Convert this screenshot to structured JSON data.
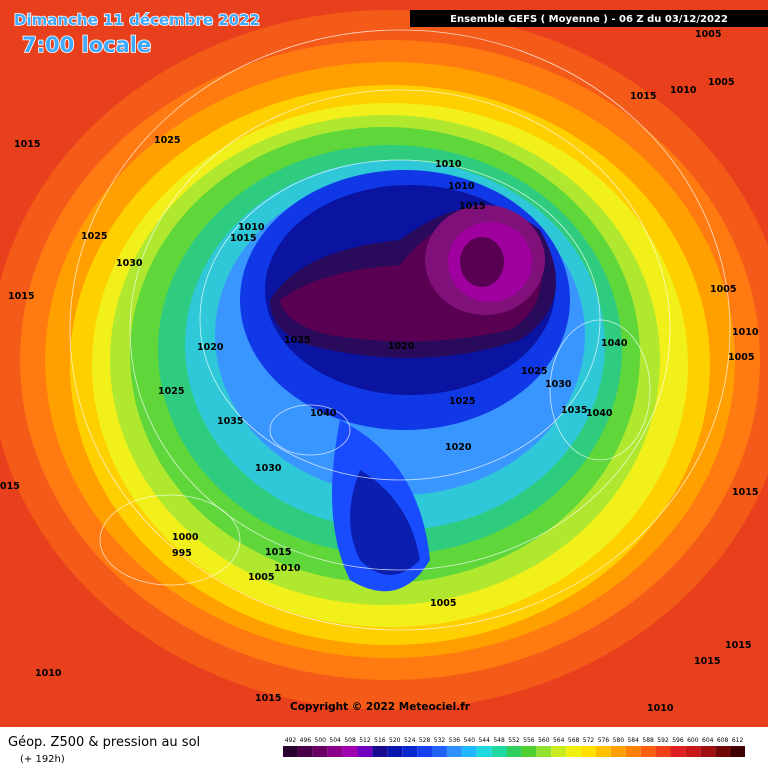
{
  "header": {
    "date": "Dimanche 11 décembre 2022",
    "time": "7:00 locale",
    "model": "Ensemble GEFS  ( Moyenne )  -  06 Z du 03/12/2022"
  },
  "isobar_labels": [
    "1005",
    "1005",
    "1015",
    "1010",
    "1015",
    "1025",
    "1010",
    "1010",
    "1015",
    "1010",
    "1015",
    "1025",
    "1030",
    "1015",
    "1005",
    "1010",
    "1005",
    "1040",
    "1020",
    "1025",
    "1020",
    "1025",
    "1030",
    "1025",
    "1025",
    "1035",
    "1040",
    "1040",
    "1035",
    "1020",
    "1030",
    "015",
    "1015",
    "1000",
    "995",
    "1015",
    "1010",
    "1005",
    "1005",
    "1015",
    "1015",
    "1010",
    "1015",
    "1010"
  ],
  "copyright": "Copyright © 2022 Meteociel.fr",
  "legend": {
    "title": "Géop. Z500 & pression au sol",
    "subtitle": "(+ 192h)",
    "levels": [
      492,
      496,
      500,
      504,
      508,
      512,
      516,
      520,
      524,
      528,
      532,
      536,
      540,
      544,
      548,
      552,
      556,
      560,
      564,
      568,
      572,
      576,
      580,
      584,
      588,
      592,
      596,
      600,
      604,
      608,
      612
    ]
  }
}
